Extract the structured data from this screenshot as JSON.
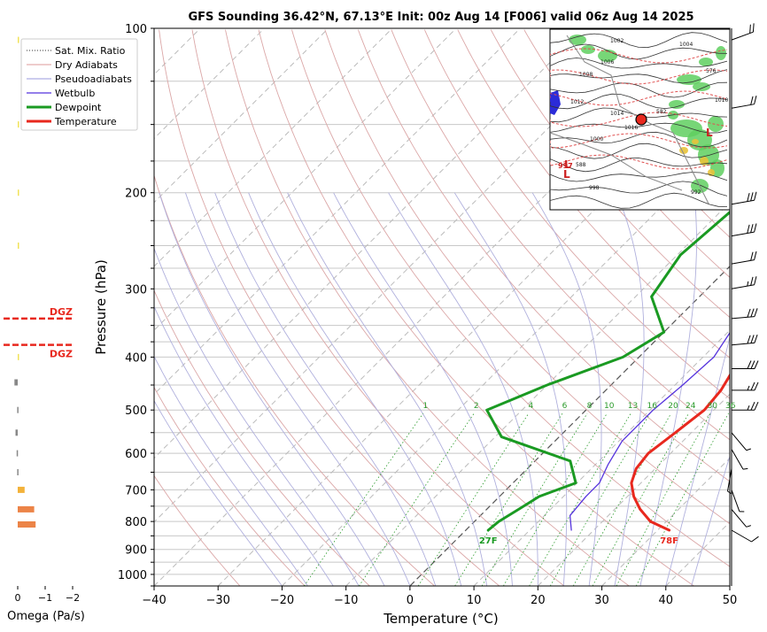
{
  "chart_data": {
    "type": "line",
    "title": "GFS Sounding 36.42°N, 67.13°E Init: 00z Aug 14 [F006] valid 06z Aug 14 2025",
    "xlabel": "Temperature (°C)",
    "ylabel": "Pressure (hPa)",
    "xlim": [
      -40,
      50
    ],
    "ylim": [
      1050,
      100
    ],
    "y_scale": "log",
    "x_ticks": [
      "−40",
      "−30",
      "−20",
      "−10",
      "0",
      "10",
      "20",
      "30",
      "40",
      "50"
    ],
    "y_ticks": [
      "100",
      "200",
      "300",
      "400",
      "500",
      "600",
      "700",
      "800",
      "900",
      "1000"
    ],
    "legend": {
      "placement": "top-left",
      "entries": [
        "Sat. Mix. Ratio",
        "Dry Adiabats",
        "Pseudoadiabats",
        "Wetbulb",
        "Dewpoint",
        "Temperature"
      ]
    },
    "mixing_ratio_labels": [
      "1",
      "2",
      "4",
      "6",
      "8",
      "10",
      "13",
      "16",
      "20",
      "24",
      "30",
      "36"
    ],
    "surface_labels": {
      "dewpoint": "27F",
      "temperature": "78F"
    },
    "series": [
      {
        "name": "Temperature",
        "color": "#e8281e",
        "points": [
          [
            31.8,
            830
          ],
          [
            27.5,
            800
          ],
          [
            24,
            760
          ],
          [
            21,
            720
          ],
          [
            18.5,
            680
          ],
          [
            17,
            640
          ],
          [
            16.5,
            600
          ],
          [
            17.5,
            550
          ],
          [
            18.5,
            500
          ],
          [
            18,
            460
          ],
          [
            17,
            430
          ],
          [
            15,
            400
          ],
          [
            11,
            360
          ],
          [
            8,
            330
          ],
          [
            5,
            300
          ],
          [
            1,
            260
          ],
          [
            -3,
            230
          ],
          [
            -8.5,
            200
          ],
          [
            -15,
            165
          ],
          [
            -21.5,
            140
          ],
          [
            -25,
            125
          ],
          [
            -28,
            115
          ],
          [
            -31.5,
            100
          ]
        ]
      },
      {
        "name": "Dewpoint",
        "color": "#1a9a22",
        "points": [
          [
            3.5,
            830
          ],
          [
            3.8,
            800
          ],
          [
            5,
            760
          ],
          [
            6.2,
            720
          ],
          [
            9.8,
            680
          ],
          [
            5.5,
            620
          ],
          [
            -9,
            560
          ],
          [
            -15.5,
            500
          ],
          [
            -10,
            450
          ],
          [
            -2.5,
            400
          ],
          [
            0,
            360
          ],
          [
            -7.5,
            310
          ],
          [
            -9.5,
            260
          ],
          [
            -8,
            200
          ],
          [
            -16,
            150
          ],
          [
            -17.5,
            130
          ],
          [
            -18.5,
            115
          ],
          [
            -19.5,
            100
          ]
        ]
      },
      {
        "name": "Wetbulb",
        "color": "#5533dd",
        "points": [
          [
            16.5,
            830
          ],
          [
            14,
            780
          ],
          [
            13.5,
            720
          ],
          [
            13.5,
            680
          ],
          [
            12,
            630
          ],
          [
            10.5,
            570
          ],
          [
            10.5,
            500
          ],
          [
            11.2,
            450
          ],
          [
            11.7,
            400
          ],
          [
            10,
            350
          ],
          [
            7,
            300
          ],
          [
            3.5,
            250
          ],
          [
            -0.5,
            220
          ],
          [
            -5,
            190
          ],
          [
            -9,
            160
          ],
          [
            -12,
            145
          ]
        ]
      }
    ],
    "wind_barbs": [
      {
        "p": 830,
        "dir": 300,
        "kt": 10
      },
      {
        "p": 760,
        "dir": 320,
        "kt": 5
      },
      {
        "p": 700,
        "dir": 340,
        "kt": 5
      },
      {
        "p": 640,
        "dir": 10,
        "kt": 5
      },
      {
        "p": 590,
        "dir": 330,
        "kt": 5
      },
      {
        "p": 550,
        "dir": 320,
        "kt": 5
      },
      {
        "p": 500,
        "dir": 270,
        "kt": 25
      },
      {
        "p": 460,
        "dir": 270,
        "kt": 25
      },
      {
        "p": 420,
        "dir": 270,
        "kt": 30
      },
      {
        "p": 380,
        "dir": 265,
        "kt": 30
      },
      {
        "p": 340,
        "dir": 265,
        "kt": 30
      },
      {
        "p": 300,
        "dir": 260,
        "kt": 25
      },
      {
        "p": 270,
        "dir": 260,
        "kt": 20
      },
      {
        "p": 240,
        "dir": 260,
        "kt": 30
      },
      {
        "p": 210,
        "dir": 260,
        "kt": 30
      },
      {
        "p": 140,
        "dir": 260,
        "kt": 20
      },
      {
        "p": 105,
        "dir": 250,
        "kt": 20
      }
    ]
  },
  "omega_panel": {
    "xlabel": "Omega (Pa/s)",
    "x_ticks": [
      "0",
      "−1",
      "−2"
    ],
    "dgz_label": "DGZ",
    "dgz_pressures": [
      340,
      380
    ],
    "bars": [
      {
        "p": 105,
        "value": -0.02,
        "color": "#f1e35a"
      },
      {
        "p": 150,
        "value": -0.02,
        "color": "#f1e35a"
      },
      {
        "p": 200,
        "value": -0.02,
        "color": "#f1e35a"
      },
      {
        "p": 250,
        "value": -0.02,
        "color": "#f1e35a"
      },
      {
        "p": 400,
        "value": -0.04,
        "color": "#f1e35a"
      },
      {
        "p": 445,
        "value": 0.12,
        "color": "#888888"
      },
      {
        "p": 500,
        "value": 0.02,
        "color": "#888888"
      },
      {
        "p": 550,
        "value": 0.08,
        "color": "#888888"
      },
      {
        "p": 600,
        "value": 0.04,
        "color": "#888888"
      },
      {
        "p": 650,
        "value": 0.02,
        "color": "#888888"
      },
      {
        "p": 700,
        "value": -0.25,
        "color": "#f3b23a"
      },
      {
        "p": 760,
        "value": -0.6,
        "color": "#ec8447"
      },
      {
        "p": 810,
        "value": -0.65,
        "color": "#ec8447"
      }
    ]
  },
  "inset_map": {
    "contour_labels": [
      "1002",
      "1004",
      "1006",
      "1008",
      "1010",
      "1012",
      "1014",
      "1016",
      "1000",
      "998",
      "992",
      "588",
      "582",
      "576"
    ],
    "pressure_centers": [
      "L",
      "L",
      "L"
    ],
    "center_values": [
      "997"
    ]
  }
}
